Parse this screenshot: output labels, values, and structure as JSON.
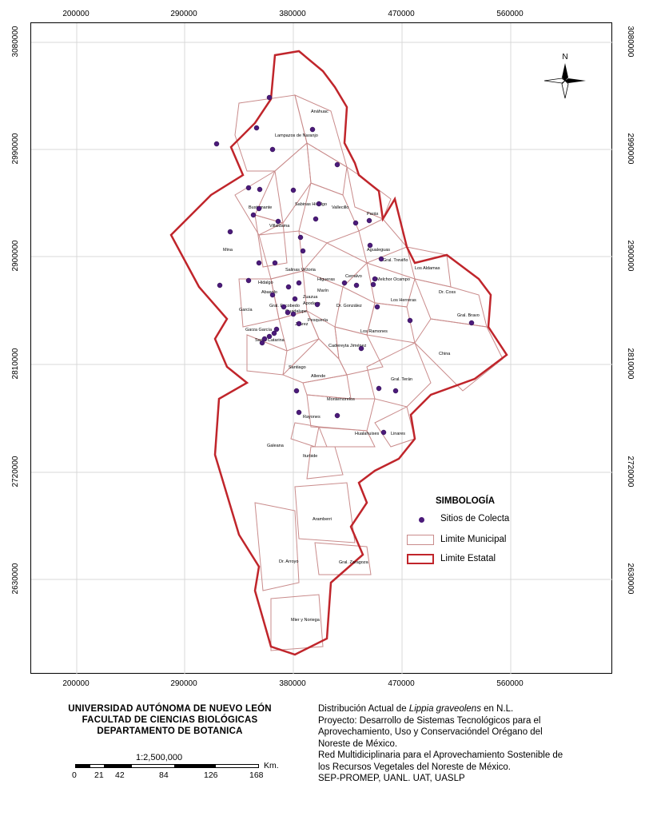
{
  "grid": {
    "x_labels": [
      "200000",
      "290000",
      "380000",
      "470000",
      "560000"
    ],
    "y_labels": [
      "3080000",
      "2990000",
      "2900000",
      "2810000",
      "2720000",
      "2630000"
    ]
  },
  "north_arrow": {
    "label": "N",
    "icon": "compass-rose-icon"
  },
  "legend": {
    "title": "SIMBOLOGÍA",
    "items": [
      {
        "label": "Sitios de Colecta",
        "symbol": "point",
        "color": "#4b1a7a"
      },
      {
        "label": "Limite Municipal",
        "symbol": "thin-outline",
        "color": "#c98b8b"
      },
      {
        "label": "Limite Estatal",
        "symbol": "thick-outline",
        "color": "#c0252b"
      }
    ]
  },
  "municipalities": [
    "Anáhuac",
    "Lampazos de Naranjo",
    "Sabinas Hidalgo",
    "Vallecillo",
    "Parás",
    "Villaldama",
    "Bustamante",
    "Agualeguas",
    "Mina",
    "Gral. Treviño",
    "Los Aldamas",
    "Salinas Victoria",
    "Cerralvo",
    "Melchor Ocampo",
    "Dr. Coss",
    "García",
    "Gral. Escobedo",
    "Dr. González",
    "Los Herreras",
    "Gral. Bravo",
    "Garza García",
    "Pesquería",
    "Los Ramones",
    "Santa Catarina",
    "Cadereyta Jiménez",
    "China",
    "Santiago",
    "Allende",
    "Gral. Terán",
    "Montemorelos",
    "Rayones",
    "Hualahuises",
    "Linares",
    "Galeana",
    "Iturbide",
    "Aramberri",
    "Dr. Arroyo",
    "Gral. Zaragoza",
    "Mier y Noriega",
    "Juárez",
    "Guadalupe",
    "Apodaca",
    "Zuazua",
    "Higueras",
    "Marín",
    "Abasolo",
    "Hidalgo"
  ],
  "colors": {
    "state_border": "#c0252b",
    "muni_border": "#c98b8b",
    "site": "#4b1a7a",
    "grid": "#d9d9d9"
  },
  "university": {
    "line1": "UNIVERSIDAD AUTÓNOMA DE NUEVO LEÓN",
    "line2": "FACULTAD DE CIENCIAS BIOLÓGICAS",
    "line3": "DEPARTAMENTO DE BOTANICA"
  },
  "scale": {
    "ratio": "1:2,500,000",
    "unit": "Km.",
    "ticks": [
      "0",
      "21",
      "42",
      "84",
      "126",
      "168"
    ]
  },
  "info": {
    "line1_pre": "Distribución Actual de ",
    "line1_species": "Lippia graveolens",
    "line1_post": " en N.L.",
    "line2": "Proyecto: Desarrollo de Sistemas Tecnológicos  para el",
    "line3": "Aprovechamiento, Uso y  Conservacióndel Orégano del",
    "line4": "Noreste de México.",
    "line5": "Red Multidiciplinaria  para el Aprovechamiento  Sostenible de",
    "line6": "los Recursos Vegetales  del Noreste de México.",
    "line7": "SEP-PROMEP, UANL. UAT, UASLP"
  }
}
